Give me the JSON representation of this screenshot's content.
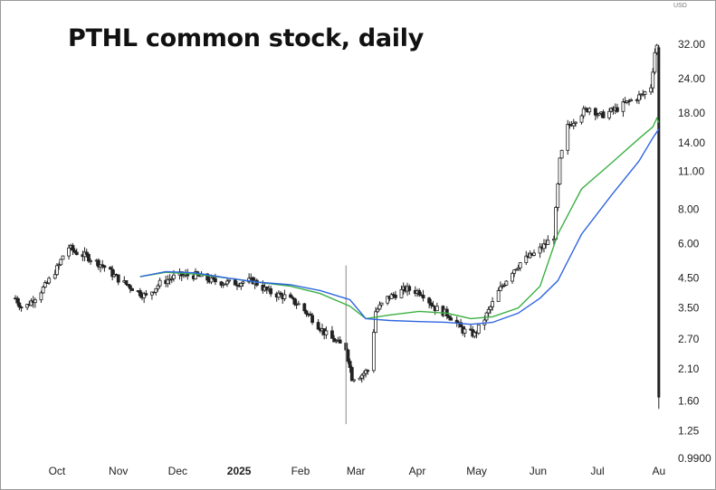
{
  "chart_data": {
    "type": "candlestick",
    "title": "PTHL common stock, daily",
    "currency": "USD",
    "y_scale": "log",
    "ylim": [
      0.99,
      33.5
    ],
    "y_ticks": [
      "32.00",
      "24.00",
      "18.00",
      "14.00",
      "11.00",
      "8.00",
      "6.00",
      "4.50",
      "3.50",
      "2.70",
      "2.10",
      "1.60",
      "1.25",
      "0.9900"
    ],
    "x_ticks": [
      "Oct",
      "Nov",
      "Dec",
      "2025",
      "Feb",
      "Mar",
      "Apr",
      "May",
      "Jun",
      "Jul",
      "Au"
    ],
    "xlim": [
      "2024-09-10",
      "2025-08-02"
    ],
    "colors": {
      "candle": "#222222",
      "ma_fast": "#3cb043",
      "ma_slow": "#2f66e0",
      "axis_line": "#111111"
    },
    "series": [
      {
        "role": "price",
        "values": []
      },
      {
        "role": "moving-average",
        "points": [
          [
            "2024-11-12",
            4.55
          ],
          [
            "2024-11-25",
            4.72
          ],
          [
            "2024-12-10",
            4.65
          ],
          [
            "2024-12-26",
            4.5
          ],
          [
            "2025-01-10",
            4.35
          ],
          [
            "2025-01-27",
            4.2
          ],
          [
            "2025-02-11",
            3.95
          ],
          [
            "2025-02-26",
            3.55
          ],
          [
            "2025-03-06",
            3.2
          ],
          [
            "2025-03-18",
            3.3
          ],
          [
            "2025-04-02",
            3.4
          ],
          [
            "2025-04-16",
            3.35
          ],
          [
            "2025-04-28",
            3.2
          ],
          [
            "2025-05-09",
            3.25
          ],
          [
            "2025-05-22",
            3.5
          ],
          [
            "2025-06-02",
            4.2
          ],
          [
            "2025-06-11",
            6.5
          ],
          [
            "2025-06-23",
            9.5
          ],
          [
            "2025-07-08",
            11.8
          ],
          [
            "2025-07-22",
            14.5
          ],
          [
            "2025-07-29",
            16.0
          ],
          [
            "2025-07-31",
            17.2
          ],
          [
            "2025-08-01",
            16.6
          ]
        ]
      },
      {
        "role": "moving-average",
        "points": [
          [
            "2024-11-12",
            4.55
          ],
          [
            "2024-11-25",
            4.75
          ],
          [
            "2024-12-10",
            4.7
          ],
          [
            "2024-12-26",
            4.5
          ],
          [
            "2025-01-10",
            4.35
          ],
          [
            "2025-01-27",
            4.25
          ],
          [
            "2025-02-11",
            4.05
          ],
          [
            "2025-02-26",
            3.75
          ],
          [
            "2025-03-06",
            3.2
          ],
          [
            "2025-03-18",
            3.15
          ],
          [
            "2025-04-02",
            3.12
          ],
          [
            "2025-04-16",
            3.1
          ],
          [
            "2025-04-28",
            3.05
          ],
          [
            "2025-05-09",
            3.1
          ],
          [
            "2025-05-22",
            3.35
          ],
          [
            "2025-06-02",
            3.8
          ],
          [
            "2025-06-11",
            4.4
          ],
          [
            "2025-06-23",
            6.5
          ],
          [
            "2025-07-08",
            9.0
          ],
          [
            "2025-07-22",
            12.0
          ],
          [
            "2025-07-29",
            14.6
          ],
          [
            "2025-08-01",
            15.7
          ]
        ]
      }
    ],
    "ohlc_anchors": [
      [
        "2024-09-10",
        3.8
      ],
      [
        "2024-09-14",
        3.45
      ],
      [
        "2024-09-18",
        3.7
      ],
      [
        "2024-09-25",
        4.2
      ],
      [
        "2024-10-02",
        5.0
      ],
      [
        "2024-10-06",
        5.9
      ],
      [
        "2024-10-10",
        5.6
      ],
      [
        "2024-10-16",
        5.4
      ],
      [
        "2024-10-24",
        5.0
      ],
      [
        "2024-11-02",
        4.4
      ],
      [
        "2024-11-09",
        4.1
      ],
      [
        "2024-11-15",
        3.85
      ],
      [
        "2024-11-22",
        4.3
      ],
      [
        "2024-12-01",
        4.6
      ],
      [
        "2024-12-10",
        4.6
      ],
      [
        "2024-12-18",
        4.4
      ],
      [
        "2024-12-28",
        4.3
      ],
      [
        "2025-01-08",
        4.4
      ],
      [
        "2025-01-16",
        4.0
      ],
      [
        "2025-01-24",
        3.85
      ],
      [
        "2025-01-31",
        3.6
      ],
      [
        "2025-02-07",
        3.2
      ],
      [
        "2025-02-14",
        2.8
      ],
      [
        "2025-02-20",
        2.6
      ],
      [
        "2025-02-24",
        2.5
      ],
      [
        "2025-02-27",
        1.95
      ],
      [
        "2025-03-04",
        2.0
      ],
      [
        "2025-03-08",
        2.1
      ],
      [
        "2025-03-11",
        3.4
      ],
      [
        "2025-03-17",
        3.8
      ],
      [
        "2025-03-26",
        4.1
      ],
      [
        "2025-04-03",
        4.0
      ],
      [
        "2025-04-10",
        3.5
      ],
      [
        "2025-04-17",
        3.3
      ],
      [
        "2025-04-24",
        2.9
      ],
      [
        "2025-04-30",
        2.8
      ],
      [
        "2025-05-05",
        3.2
      ],
      [
        "2025-05-12",
        4.0
      ],
      [
        "2025-05-18",
        4.7
      ],
      [
        "2025-05-24",
        5.2
      ],
      [
        "2025-05-30",
        5.5
      ],
      [
        "2025-06-04",
        5.9
      ],
      [
        "2025-06-09",
        6.4
      ],
      [
        "2025-06-12",
        12.0
      ],
      [
        "2025-06-16",
        16.0
      ],
      [
        "2025-06-22",
        17.8
      ],
      [
        "2025-06-28",
        19.0
      ],
      [
        "2025-07-02",
        17.5
      ],
      [
        "2025-07-10",
        18.5
      ],
      [
        "2025-07-18",
        20.0
      ],
      [
        "2025-07-24",
        21.0
      ],
      [
        "2025-07-28",
        22.5
      ],
      [
        "2025-07-30",
        30.0
      ],
      [
        "2025-07-31",
        31.5
      ]
    ],
    "last_candle": {
      "date": "2025-08-01",
      "open": 31.2,
      "high": 31.8,
      "low": 1.5,
      "close": 1.65
    },
    "wick_spikes": [
      {
        "date": "2025-02-24",
        "high": 5.0,
        "low": 1.32
      }
    ]
  }
}
